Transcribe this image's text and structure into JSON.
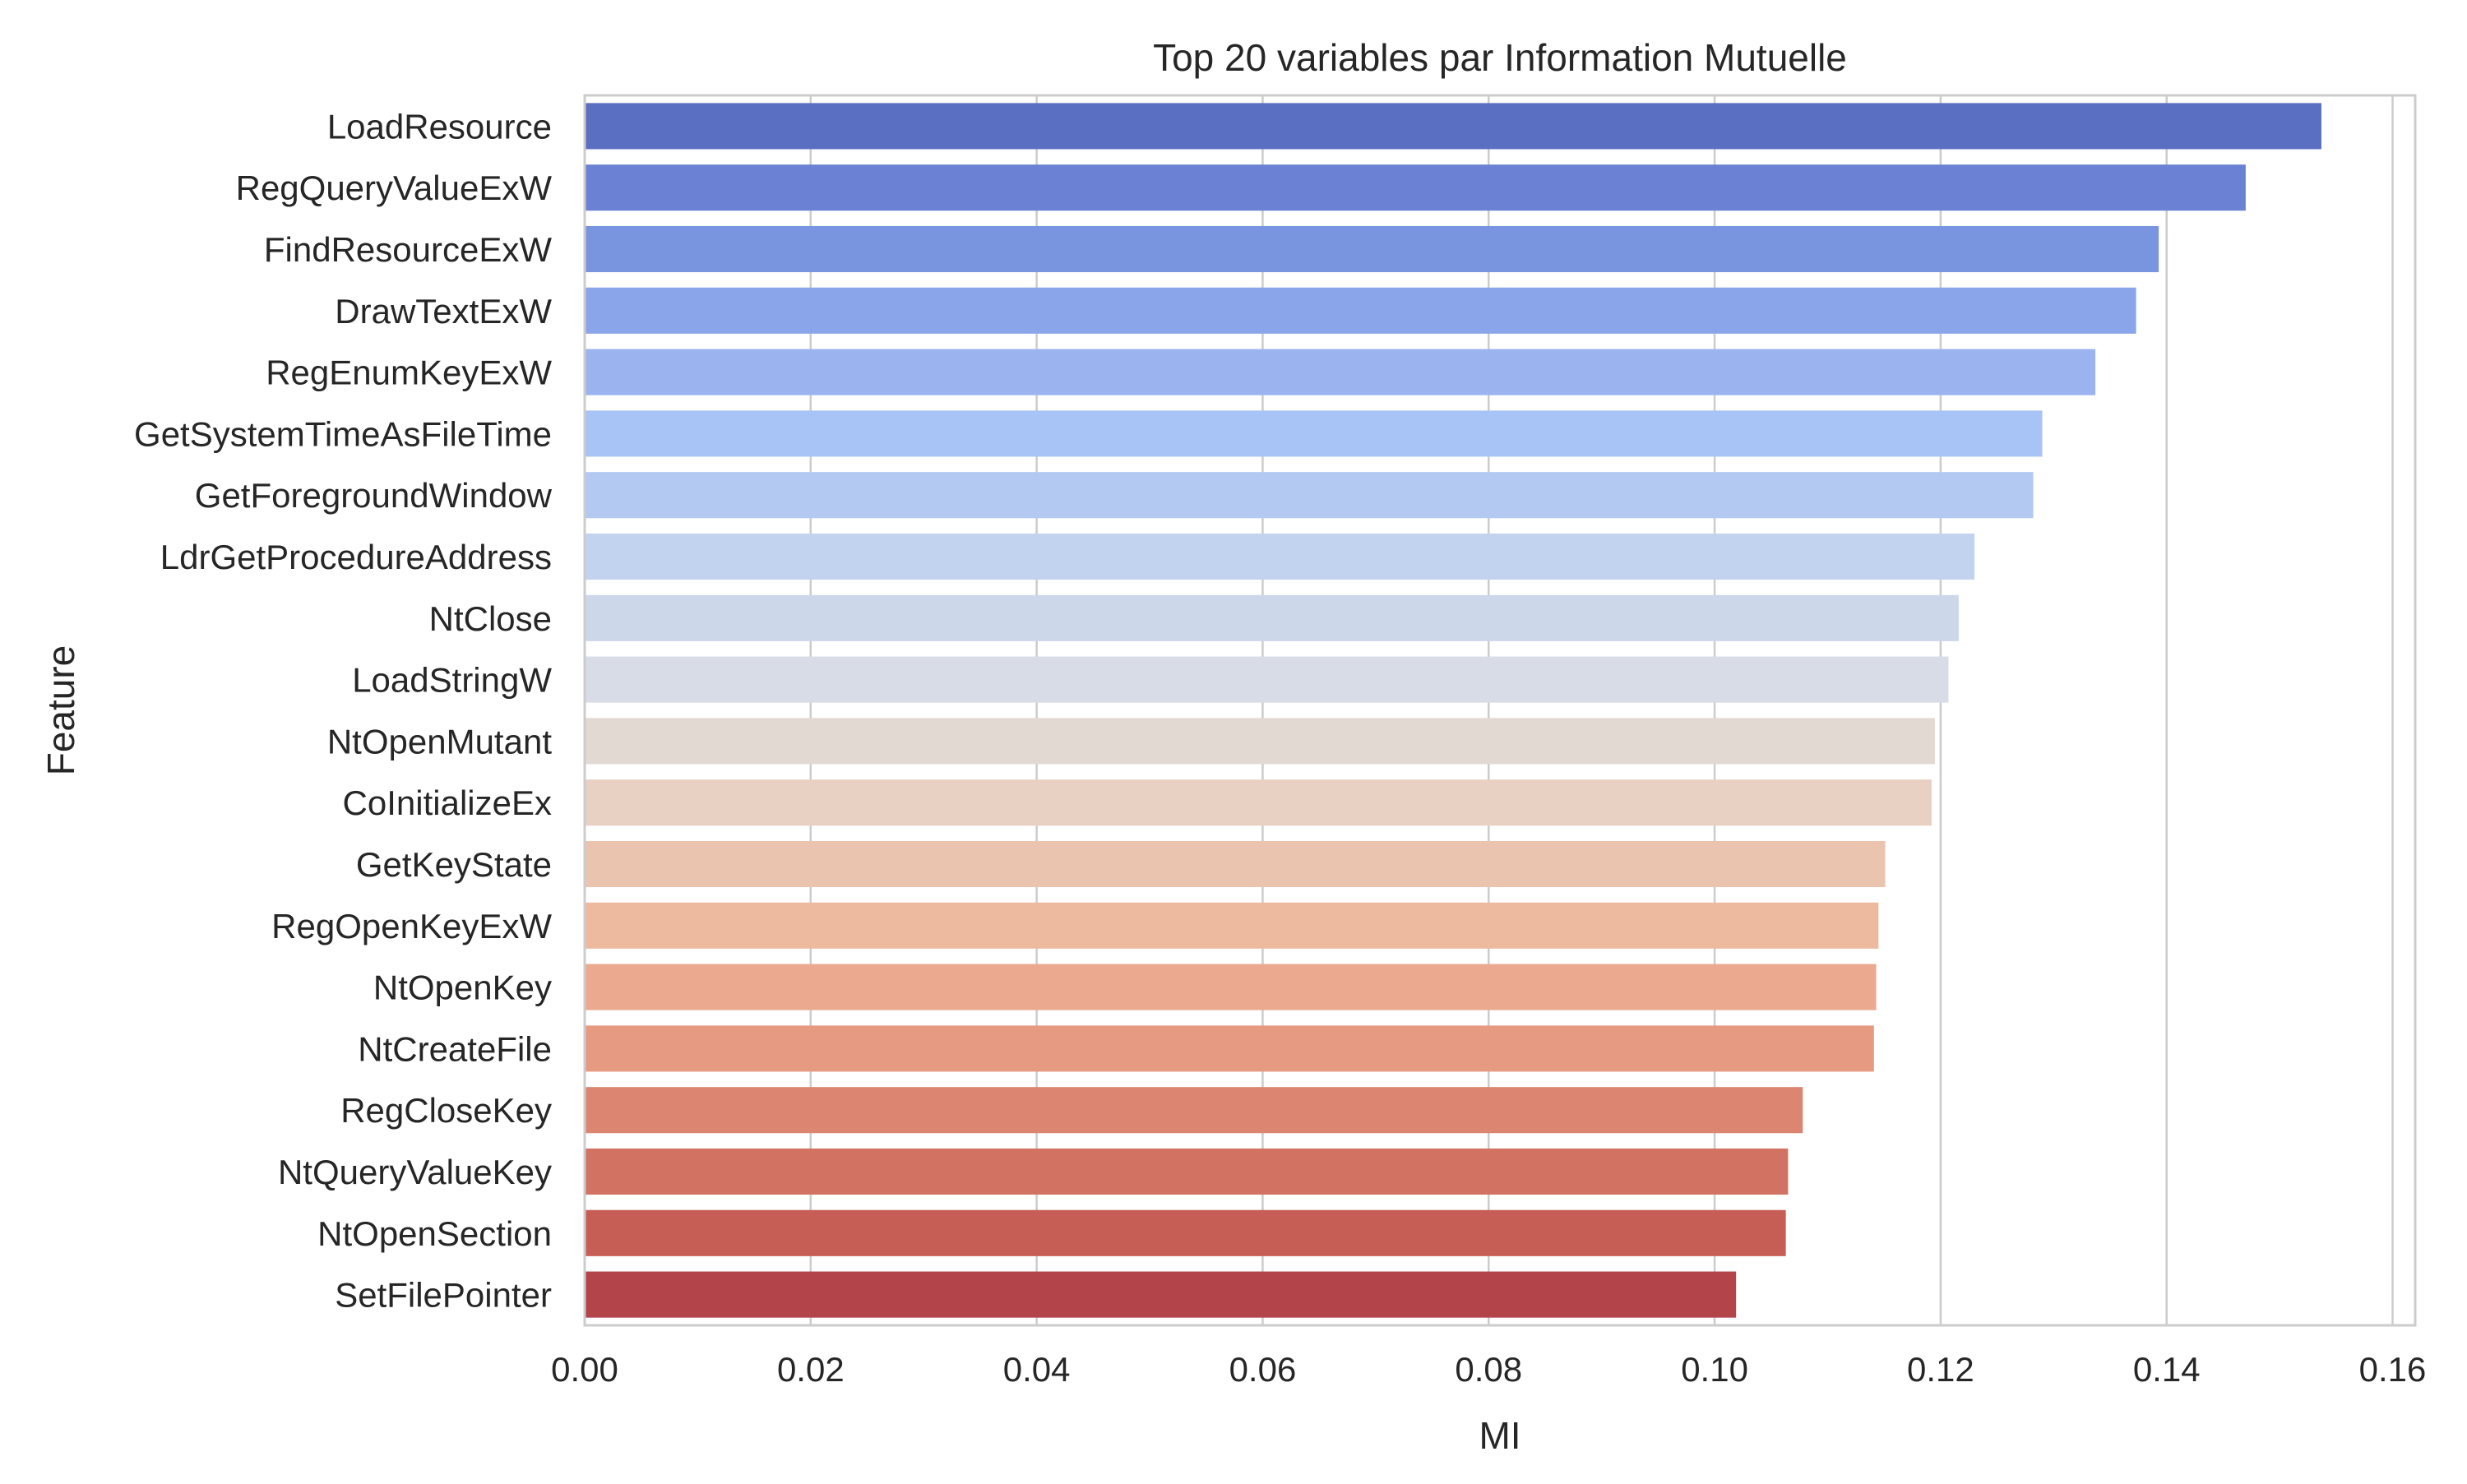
{
  "chart_data": {
    "type": "bar",
    "orientation": "horizontal",
    "title": "Top 20 variables par Information Mutuelle",
    "xlabel": "MI",
    "ylabel": "Feature",
    "xlim": [
      0.0,
      0.162
    ],
    "xticks": [
      0.0,
      0.02,
      0.04,
      0.06,
      0.08,
      0.1,
      0.12,
      0.14,
      0.16
    ],
    "xtick_labels": [
      "0.00",
      "0.02",
      "0.04",
      "0.06",
      "0.08",
      "0.10",
      "0.12",
      "0.14",
      "0.16"
    ],
    "grid": true,
    "palette": "coolwarm",
    "categories": [
      "LoadResource",
      "RegQueryValueExW",
      "FindResourceExW",
      "DrawTextExW",
      "RegEnumKeyExW",
      "GetSystemTimeAsFileTime",
      "GetForegroundWindow",
      "LdrGetProcedureAddress",
      "NtClose",
      "LoadStringW",
      "NtOpenMutant",
      "CoInitializeEx",
      "GetKeyState",
      "RegOpenKeyExW",
      "NtOpenKey",
      "NtCreateFile",
      "RegCloseKey",
      "NtQueryValueKey",
      "NtOpenSection",
      "SetFilePointer"
    ],
    "values": [
      0.1537,
      0.147,
      0.1393,
      0.1373,
      0.1337,
      0.129,
      0.1282,
      0.123,
      0.1216,
      0.1207,
      0.1195,
      0.1192,
      0.1151,
      0.1145,
      0.1143,
      0.1141,
      0.1078,
      0.1065,
      0.1063,
      0.1019
    ],
    "colors": [
      "#5a6fc2",
      "#6b82d4",
      "#7a95e0",
      "#8aa5ea",
      "#9bb4ef",
      "#a8c3f5",
      "#b4c9f1",
      "#c2d3ef",
      "#ccd7ea",
      "#d8dce6",
      "#e2d9d3",
      "#e8d0c3",
      "#ebc4b0",
      "#edbaa0",
      "#eba98f",
      "#e69a82",
      "#dc8672",
      "#d27262",
      "#c65e56",
      "#b3444a"
    ]
  }
}
